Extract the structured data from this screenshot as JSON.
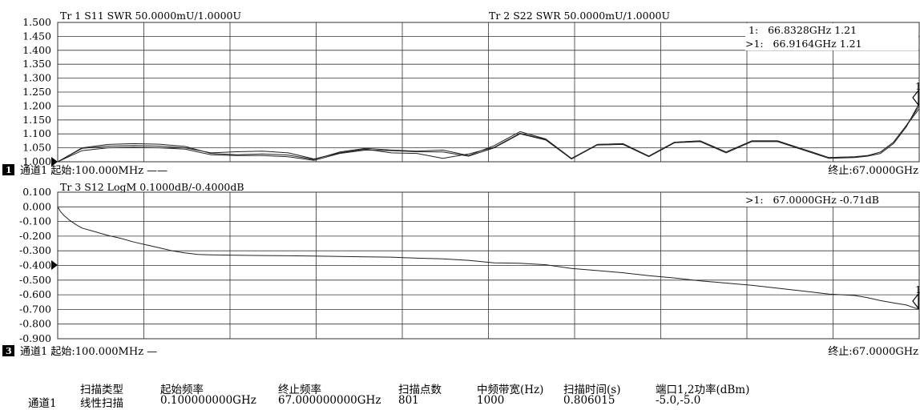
{
  "chart_data": [
    {
      "type": "line",
      "title": "Tr 1  S11 SWR 50.0000mU/1.0000U",
      "title2": "Tr 2  S22 SWR 50.0000mU/1.0000U",
      "ylim": [
        1.0,
        1.5
      ],
      "xlim": [
        0.1,
        67.0
      ],
      "x_unit": "GHz",
      "yticks": [
        "1.500",
        "1.450",
        "1.400",
        "1.350",
        "1.300",
        "1.250",
        "1.200",
        "1.150",
        "1.100",
        "1.050",
        "1.000"
      ],
      "ref_value": 1.0,
      "grid": true,
      "series": [
        {
          "x": [
            0.1,
            2,
            4,
            6,
            8,
            10,
            12,
            14,
            16,
            18,
            20,
            22,
            24,
            26,
            28,
            30,
            32,
            34,
            36,
            38,
            40,
            42,
            44,
            46,
            48,
            50,
            52,
            54,
            56,
            58,
            60,
            62,
            63,
            64,
            65,
            66,
            67
          ],
          "values": [
            1.0,
            1.05,
            1.062,
            1.065,
            1.063,
            1.055,
            1.03,
            1.025,
            1.028,
            1.024,
            1.008,
            1.035,
            1.048,
            1.042,
            1.038,
            1.042,
            1.022,
            1.058,
            1.108,
            1.082,
            1.012,
            1.062,
            1.065,
            1.02,
            1.07,
            1.075,
            1.035,
            1.075,
            1.075,
            1.045,
            1.015,
            1.018,
            1.022,
            1.035,
            1.07,
            1.13,
            1.19
          ]
        },
        {
          "x": [
            0.1,
            2,
            4,
            6,
            8,
            10,
            12,
            14,
            16,
            18,
            20,
            22,
            24,
            26,
            28,
            30,
            32,
            34,
            36,
            38,
            40,
            42,
            44,
            46,
            48,
            50,
            52,
            54,
            56,
            58,
            60,
            62,
            63,
            64,
            65,
            66,
            67
          ],
          "values": [
            1.0,
            1.048,
            1.056,
            1.058,
            1.056,
            1.05,
            1.032,
            1.036,
            1.038,
            1.032,
            1.01,
            1.032,
            1.045,
            1.032,
            1.03,
            1.012,
            1.028,
            1.052,
            1.102,
            1.08,
            1.01,
            1.062,
            1.065,
            1.02,
            1.07,
            1.075,
            1.035,
            1.075,
            1.075,
            1.045,
            1.015,
            1.018,
            1.022,
            1.035,
            1.07,
            1.13,
            1.2
          ]
        },
        {
          "x": [
            0.1,
            2,
            4,
            6,
            8,
            10,
            12,
            14,
            16,
            18,
            20,
            22,
            24,
            26,
            28,
            30,
            32,
            34,
            36,
            38,
            40,
            42,
            44,
            46,
            48,
            50,
            52,
            54,
            56,
            58,
            60,
            62,
            63,
            64,
            65,
            66,
            67
          ],
          "values": [
            1.0,
            1.04,
            1.05,
            1.052,
            1.05,
            1.045,
            1.025,
            1.022,
            1.022,
            1.018,
            1.005,
            1.03,
            1.042,
            1.04,
            1.036,
            1.035,
            1.02,
            1.05,
            1.1,
            1.078,
            1.01,
            1.06,
            1.062,
            1.018,
            1.068,
            1.072,
            1.032,
            1.072,
            1.072,
            1.042,
            1.012,
            1.015,
            1.02,
            1.03,
            1.065,
            1.125,
            1.21
          ]
        }
      ],
      "markers": [
        "1:   66.8328GHz 1.21",
        ">1:   66.9164GHz 1.21"
      ],
      "marker_label": "1",
      "channel_badge": "1",
      "start_label": "通道1  起始:100.000MHz ——",
      "stop_label": "终止:67.0000GHz"
    },
    {
      "type": "line",
      "title": "Tr 3  S12 LogM 0.1000dB/-0.4000dB",
      "ylim": [
        -0.9,
        0.1
      ],
      "xlim": [
        0.1,
        67.0
      ],
      "x_unit": "GHz",
      "yticks": [
        "0.100",
        "0.000",
        "-0.100",
        "-0.200",
        "-0.300",
        "-0.400",
        "-0.500",
        "-0.600",
        "-0.700",
        "-0.800",
        "-0.900"
      ],
      "ref_value": -0.4,
      "grid": true,
      "series": [
        {
          "x": [
            0.1,
            0.3,
            0.6,
            1,
            1.5,
            2,
            3,
            4,
            5,
            6,
            7,
            8,
            9,
            10,
            11,
            12,
            14,
            16,
            18,
            20,
            22,
            24,
            26,
            28,
            30,
            32,
            34,
            36,
            38,
            40,
            42,
            44,
            46,
            48,
            50,
            52,
            54,
            56,
            58,
            60,
            62,
            63,
            64,
            65,
            66,
            67
          ],
          "values": [
            0.0,
            -0.03,
            -0.06,
            -0.09,
            -0.12,
            -0.145,
            -0.17,
            -0.195,
            -0.215,
            -0.24,
            -0.26,
            -0.28,
            -0.3,
            -0.315,
            -0.325,
            -0.328,
            -0.33,
            -0.332,
            -0.334,
            -0.336,
            -0.338,
            -0.341,
            -0.343,
            -0.35,
            -0.355,
            -0.365,
            -0.382,
            -0.385,
            -0.395,
            -0.42,
            -0.435,
            -0.45,
            -0.47,
            -0.485,
            -0.505,
            -0.52,
            -0.535,
            -0.555,
            -0.575,
            -0.595,
            -0.605,
            -0.62,
            -0.64,
            -0.655,
            -0.67,
            -0.7
          ]
        }
      ],
      "markers": [
        ">1:   67.0000GHz -0.71dB"
      ],
      "marker_label": "1",
      "channel_badge": "3",
      "start_label": "通道1  起始:100.000MHz —",
      "stop_label": "终止:67.0000GHz"
    }
  ],
  "summary": {
    "channel": "通道1",
    "headers": [
      "扫描类型",
      "起始频率",
      "终止频率",
      "扫描点数",
      "中频带宽(Hz)",
      "扫描时间(s)",
      "端口1,2功率(dBm)"
    ],
    "values": [
      "线性扫描",
      "0.100000000GHz",
      "67.000000000GHz",
      "801",
      "1000",
      "0.806015",
      "-5.0,-5.0"
    ]
  },
  "colors": {
    "trace": "#222222",
    "grid": "#333333",
    "background": "#ffffff",
    "badge": "#000000",
    "badge_text": "#ffffff"
  }
}
